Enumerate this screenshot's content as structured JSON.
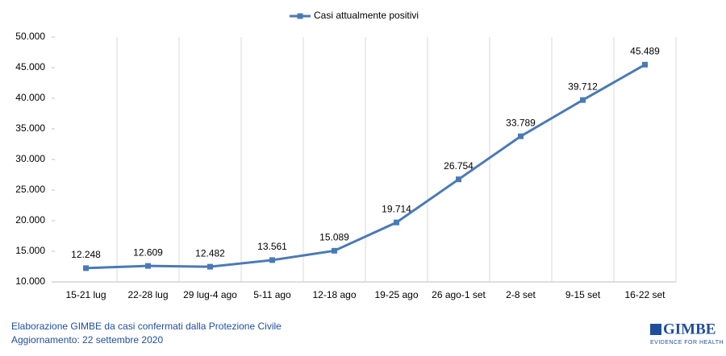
{
  "chart_data": {
    "type": "line",
    "categories": [
      "15-21 lug",
      "22-28 lug",
      "29 lug-4 ago",
      "5-11 ago",
      "12-18 ago",
      "19-25 ago",
      "26 ago-1 set",
      "2-8 set",
      "9-15 set",
      "16-22 set"
    ],
    "series": [
      {
        "name": "Casi attualmente positivi",
        "color": "#4a7ab5",
        "values": [
          12248,
          12609,
          12482,
          13561,
          15089,
          19714,
          26754,
          33789,
          39712,
          45489
        ],
        "value_labels": [
          "12.248",
          "12.609",
          "12.482",
          "13.561",
          "15.089",
          "19.714",
          "26.754",
          "33.789",
          "39.712",
          "45.489"
        ]
      }
    ],
    "ylim": [
      10000,
      50000
    ],
    "yticks": [
      {
        "value": 10000,
        "label": "10.000"
      },
      {
        "value": 15000,
        "label": "15.000"
      },
      {
        "value": 20000,
        "label": "20.000"
      },
      {
        "value": 25000,
        "label": "25.000"
      },
      {
        "value": 30000,
        "label": "30.000"
      },
      {
        "value": 35000,
        "label": "35.000"
      },
      {
        "value": 40000,
        "label": "40.000"
      },
      {
        "value": 45000,
        "label": "45.000"
      },
      {
        "value": 50000,
        "label": "50.000"
      }
    ],
    "legend": "top",
    "source": "Elaborazione GIMBE da casi confermati dalla Protezione Civile",
    "updated": "Aggiornamento: 22 settembre 2020",
    "logo": "GIMBE",
    "logo_tagline": "EVIDENCE FOR HEALTH"
  }
}
